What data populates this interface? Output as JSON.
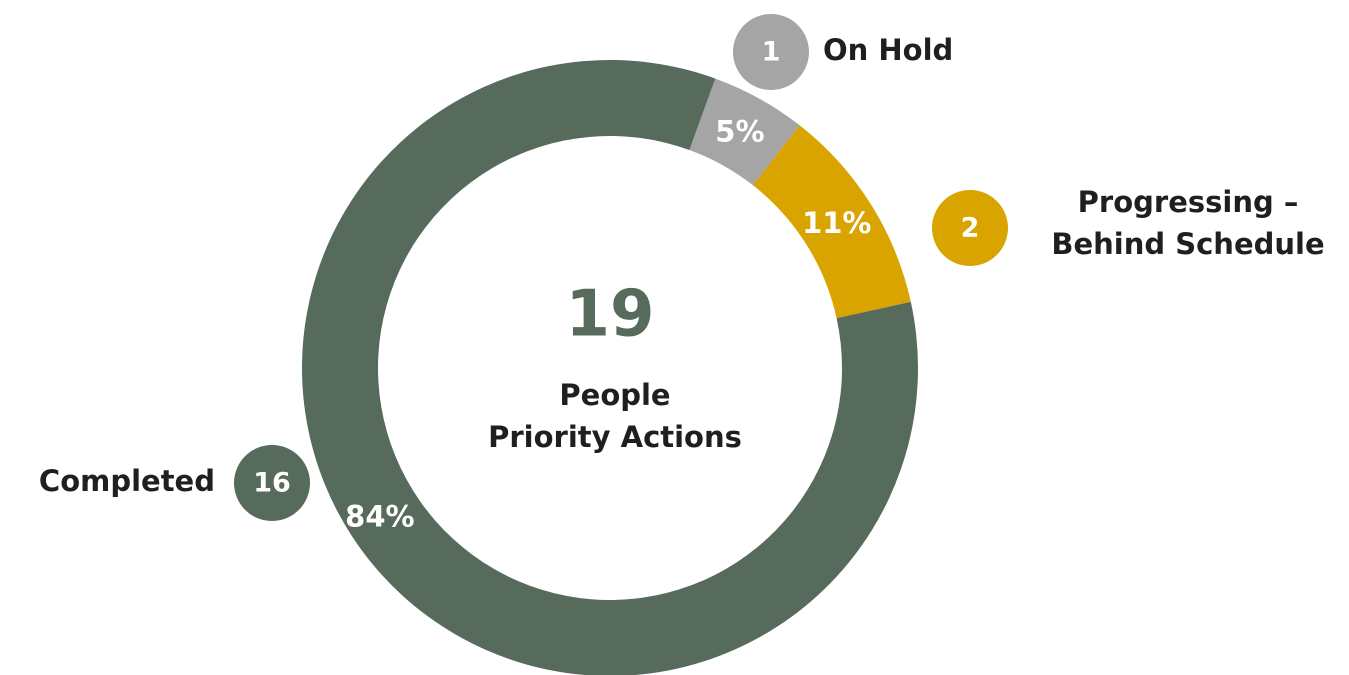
{
  "chart_data": {
    "type": "donut",
    "total": "19",
    "center_label": "People\nPriority Actions",
    "categories": [
      "On Hold",
      "Progressing –\nBehind Schedule",
      "Completed"
    ],
    "counts": [
      1,
      2,
      16
    ],
    "values": [
      5,
      11,
      84
    ],
    "value_labels": [
      "5%",
      "11%",
      "84%"
    ],
    "colors": [
      "#a5a5a5",
      "#d9a300",
      "#566b5b"
    ]
  }
}
